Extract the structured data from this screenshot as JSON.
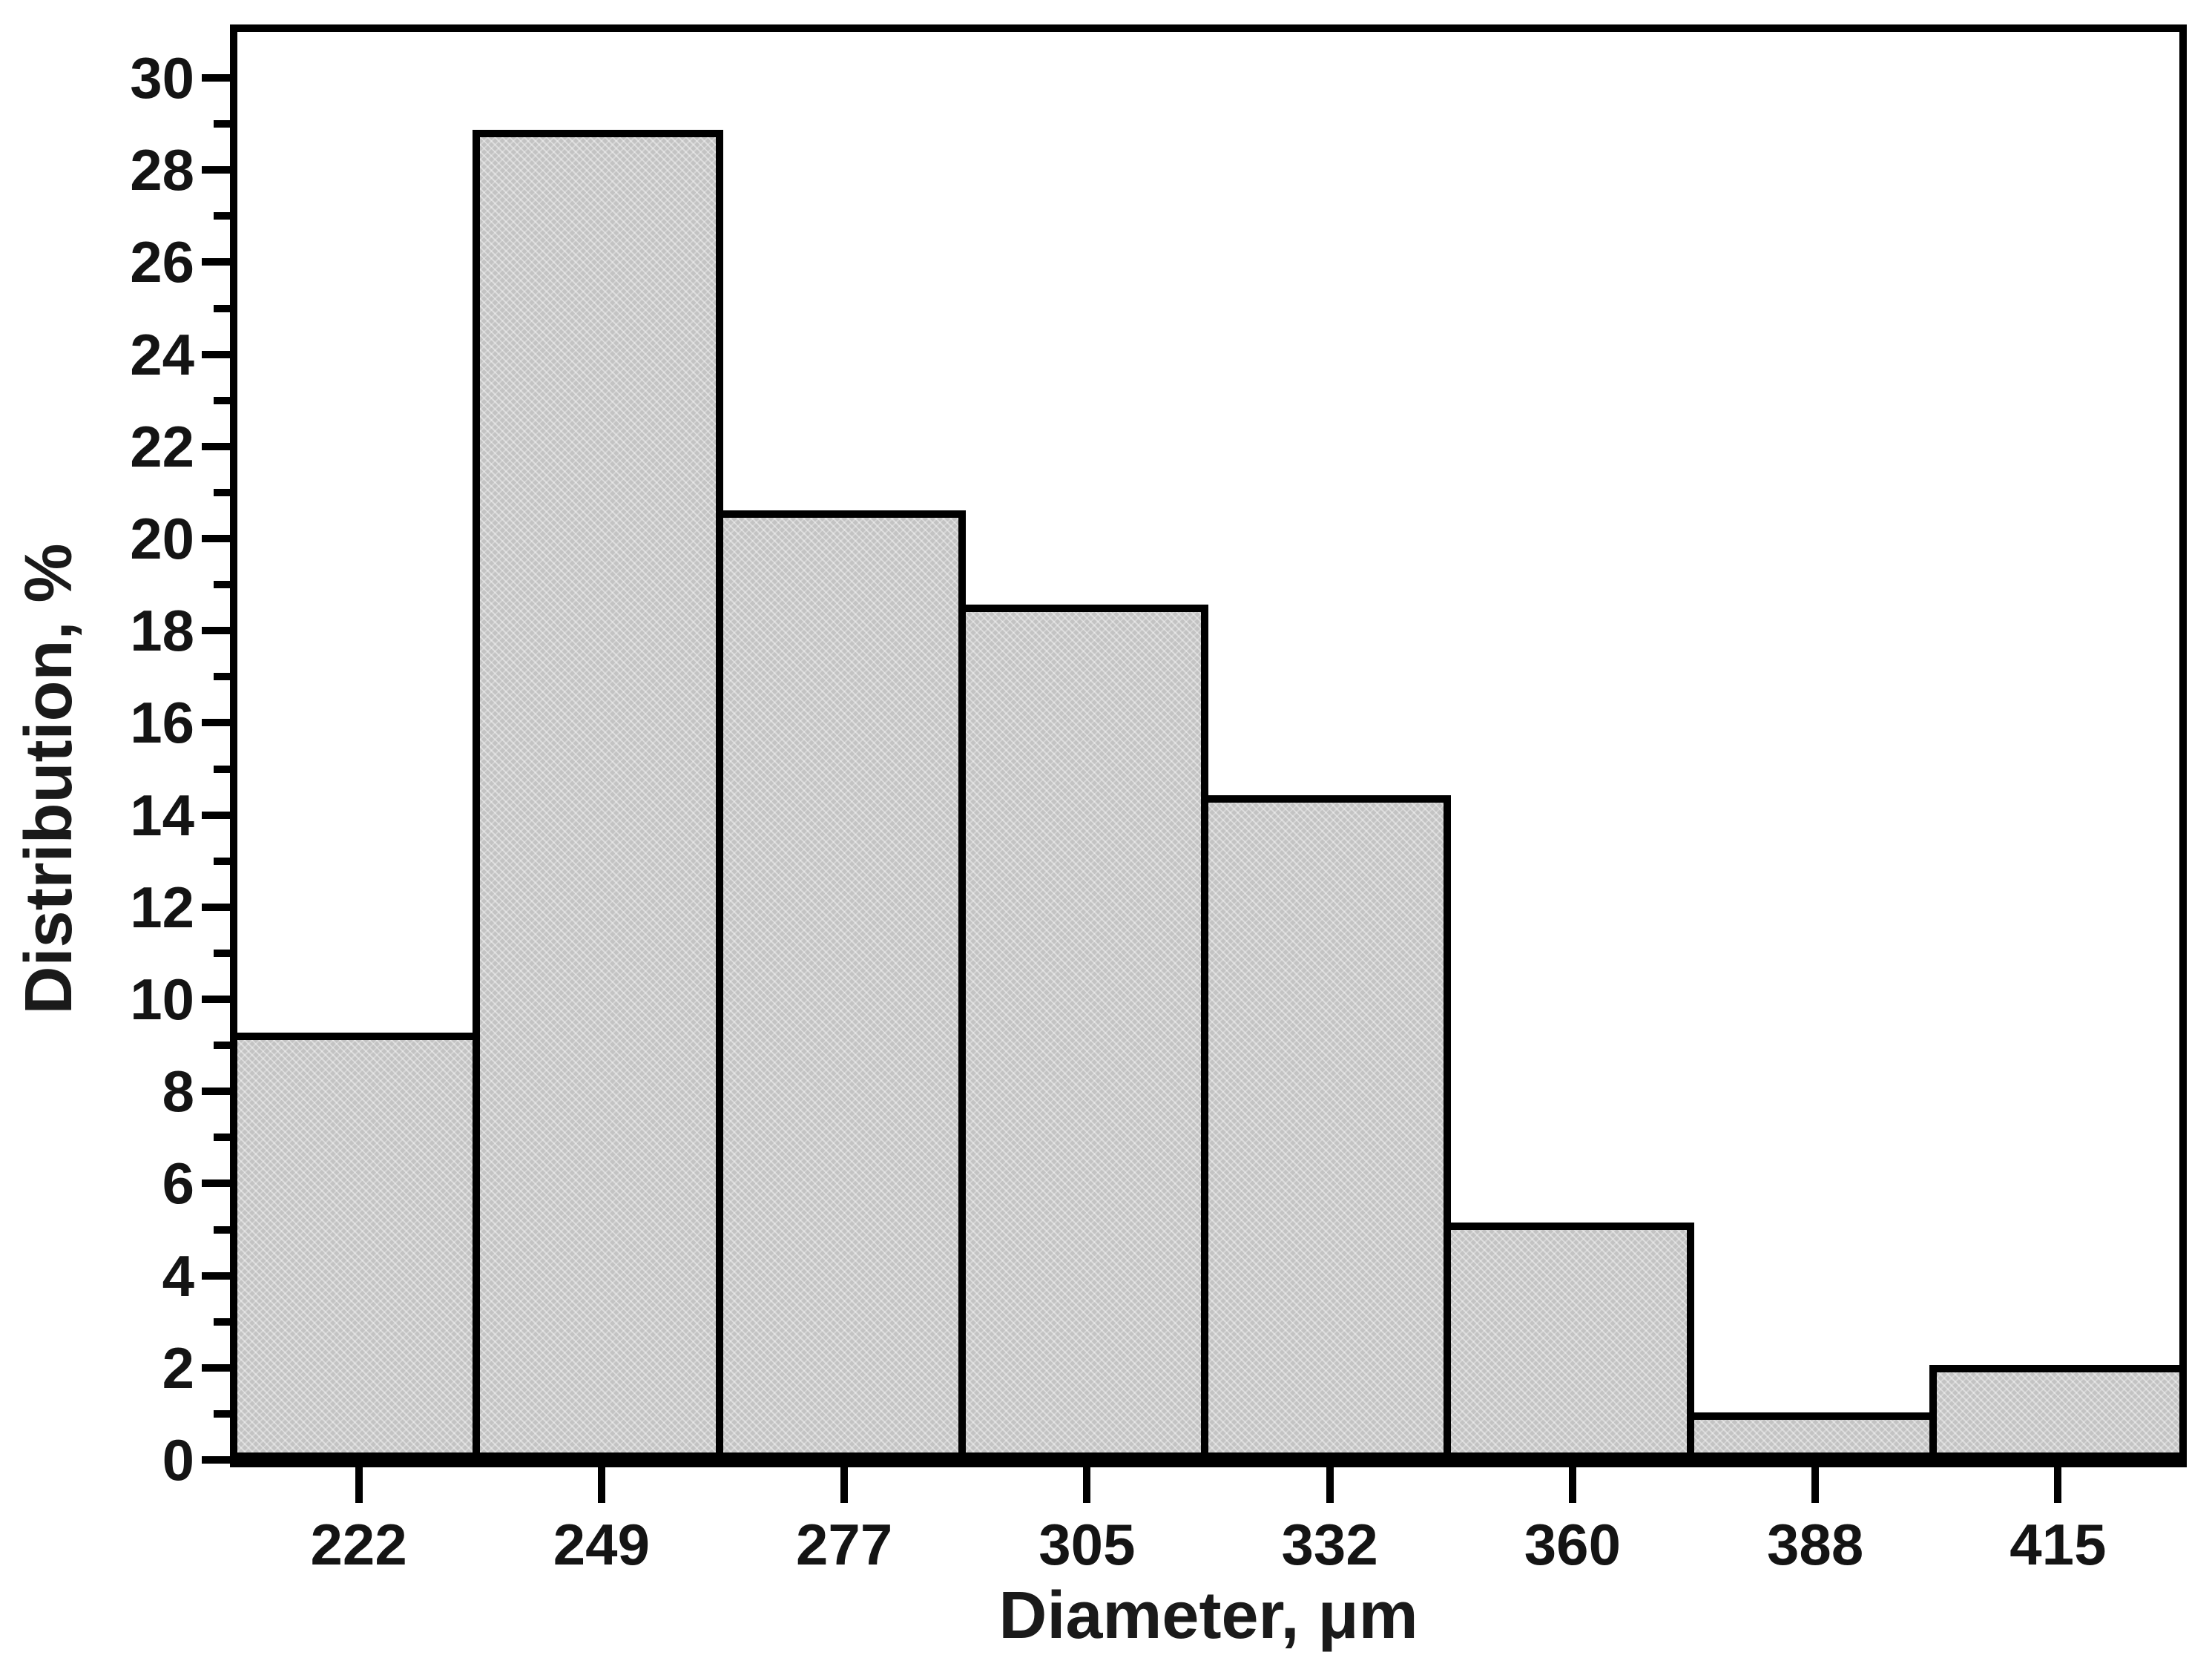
{
  "chart_data": {
    "type": "bar",
    "subtype": "histogram",
    "title": "",
    "xlabel": "Diameter, μm",
    "ylabel": "Distribution, %",
    "categories": [
      "222",
      "249",
      "277",
      "305",
      "332",
      "360",
      "388",
      "415"
    ],
    "values": [
      9.28,
      28.87,
      20.62,
      18.56,
      14.43,
      5.15,
      1.03,
      2.06
    ],
    "ylim": [
      0,
      31
    ],
    "yticks_major": [
      0,
      2,
      4,
      6,
      8,
      10,
      12,
      14,
      16,
      18,
      20,
      22,
      24,
      26,
      28,
      30
    ],
    "yticks_minor": [
      1,
      3,
      5,
      7,
      9,
      11,
      13,
      15,
      17,
      19,
      21,
      23,
      25,
      27,
      29
    ],
    "grid": false,
    "legend": null,
    "colors": {
      "bar_fill": "#c3c3c3",
      "bar_pattern_dot": "#d5d5d5",
      "bar_border": "#000000",
      "axis": "#000000",
      "text": "#1a1a1a",
      "background": "#ffffff"
    }
  }
}
